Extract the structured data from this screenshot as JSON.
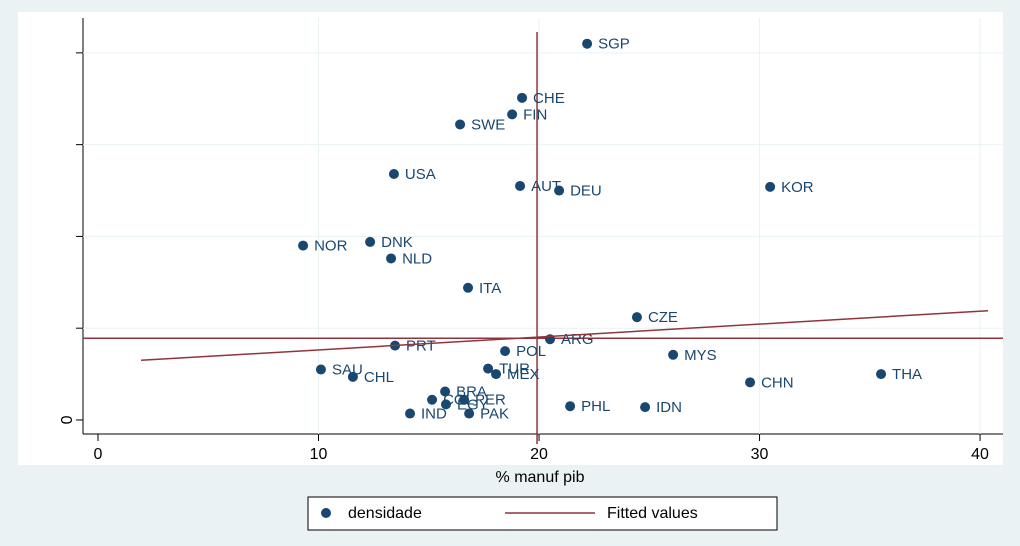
{
  "chart_data": {
    "type": "scatter",
    "x_label": "% manuf pib",
    "xlim": [
      -0.68,
      41.04
    ],
    "xticks": [
      0,
      10,
      20,
      30,
      40
    ],
    "ylim": [
      -0.153,
      4.38
    ],
    "yticks": [
      0,
      1,
      2,
      3,
      4
    ],
    "ytick_labels": [
      0,
      null,
      null,
      null,
      null
    ],
    "xline": 19.91,
    "yline": 0.89,
    "refline_color": "#90353b",
    "series": [
      {
        "name": "densidade",
        "type": "scatter",
        "color": "#1a476f",
        "labels": [
          "SGP",
          "CHE",
          "FIN",
          "SWE",
          "USA",
          "AUT",
          "DEU",
          "KOR",
          "NOR",
          "DNK",
          "NLD",
          "ITA",
          "CZE",
          "ARG",
          "PRT",
          "POL",
          "MYS",
          "SAU",
          "CHL",
          "TUR",
          "MEX",
          "CHN",
          "THA",
          "BRA",
          "COL",
          "EGY",
          "PER",
          "IND",
          "PAK",
          "PHL",
          "IDN"
        ],
        "x": [
          22.18,
          19.23,
          18.78,
          16.42,
          13.42,
          19.14,
          20.91,
          30.48,
          9.3,
          12.34,
          13.29,
          16.78,
          24.44,
          20.5,
          13.47,
          18.46,
          26.08,
          10.11,
          11.56,
          17.69,
          18.05,
          29.57,
          35.51,
          15.74,
          15.15,
          15.78,
          16.6,
          14.15,
          16.83,
          21.41,
          24.81
        ],
        "values": [
          4.1,
          3.51,
          3.33,
          3.22,
          2.68,
          2.55,
          2.5,
          2.54,
          1.9,
          1.94,
          1.76,
          1.44,
          1.12,
          0.88,
          0.81,
          0.75,
          0.71,
          0.55,
          0.47,
          0.56,
          0.5,
          0.41,
          0.5,
          0.31,
          0.22,
          0.17,
          0.22,
          0.07,
          0.07,
          0.15,
          0.14
        ]
      },
      {
        "name": "Fitted values",
        "type": "line",
        "color": "#90353b",
        "x": [
          1.95,
          40.36
        ],
        "values": [
          0.65,
          1.19
        ]
      }
    ]
  }
}
